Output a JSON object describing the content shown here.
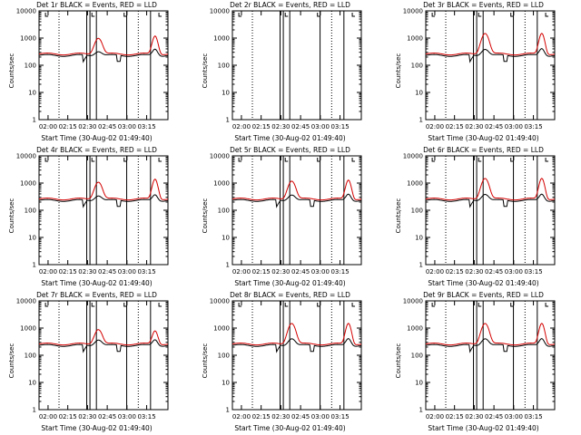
{
  "chart_data": [
    {
      "type": "line",
      "title": "Det 1r BLACK = Events, RED = LLD",
      "xlabel": "Start Time (30-Aug-02 01:49:40)",
      "ylabel": "Counts/sec",
      "x_ticks": [
        "02:00",
        "02:15",
        "02:30",
        "02:45",
        "03:00",
        "03:15"
      ],
      "y_ticks": [
        "1",
        "10",
        "100",
        "1000",
        "10000"
      ],
      "ylim": [
        1,
        10000
      ],
      "y_scale": "log",
      "series": [
        {
          "color": "#000000",
          "peaks": [
            330,
            400
          ]
        },
        {
          "color": "#d40000",
          "peaks": [
            1000,
            1200
          ]
        }
      ],
      "has_data": true
    },
    {
      "type": "line",
      "title": "Det 2r BLACK = Events, RED = LLD",
      "xlabel": "Start Time (30-Aug-02 01:49:40)",
      "ylabel": "Counts/sec",
      "x_ticks": [
        "02:00",
        "02:15",
        "02:30",
        "02:45",
        "03:00",
        "03:15"
      ],
      "y_ticks": [
        "1",
        "10",
        "100",
        "1000",
        "10000"
      ],
      "ylim": [
        1,
        10000
      ],
      "y_scale": "log",
      "series": [],
      "has_data": false
    },
    {
      "type": "line",
      "title": "Det 3r BLACK = Events, RED = LLD",
      "xlabel": "Start Time (30-Aug-02 01:49:40)",
      "ylabel": "Counts/sec",
      "x_ticks": [
        "02:00",
        "02:15",
        "02:30",
        "02:45",
        "03:00",
        "03:15"
      ],
      "y_ticks": [
        "1",
        "10",
        "100",
        "1000",
        "10000"
      ],
      "ylim": [
        1,
        10000
      ],
      "y_scale": "log",
      "series": [
        {
          "color": "#000000",
          "peaks": [
            400,
            420
          ]
        },
        {
          "color": "#d40000",
          "peaks": [
            1500,
            1500
          ]
        }
      ],
      "has_data": true
    },
    {
      "type": "line",
      "title": "Det 4r BLACK = Events, RED = LLD",
      "xlabel": "Start Time (30-Aug-02 01:49:40)",
      "ylabel": "Counts/sec",
      "x_ticks": [
        "02:00",
        "02:15",
        "02:30",
        "02:45",
        "03:00",
        "03:15"
      ],
      "y_ticks": [
        "1",
        "10",
        "100",
        "1000",
        "10000"
      ],
      "ylim": [
        1,
        10000
      ],
      "y_scale": "log",
      "series": [
        {
          "color": "#000000",
          "peaks": [
            350,
            380
          ]
        },
        {
          "color": "#d40000",
          "peaks": [
            1100,
            1400
          ]
        }
      ],
      "has_data": true
    },
    {
      "type": "line",
      "title": "Det 5r BLACK = Events, RED = LLD",
      "xlabel": "Start Time (30-Aug-02 01:49:40)",
      "ylabel": "Counts/sec",
      "x_ticks": [
        "02:00",
        "02:15",
        "02:30",
        "02:45",
        "03:00",
        "03:15"
      ],
      "y_ticks": [
        "1",
        "10",
        "100",
        "1000",
        "10000"
      ],
      "ylim": [
        1,
        10000
      ],
      "y_scale": "log",
      "series": [
        {
          "color": "#000000",
          "peaks": [
            380,
            400
          ]
        },
        {
          "color": "#d40000",
          "peaks": [
            1200,
            1300
          ]
        }
      ],
      "has_data": true
    },
    {
      "type": "line",
      "title": "Det 6r BLACK = Events, RED = LLD",
      "xlabel": "Start Time (30-Aug-02 01:49:40)",
      "ylabel": "Counts/sec",
      "x_ticks": [
        "02:00",
        "02:15",
        "02:30",
        "02:45",
        "03:00",
        "03:15"
      ],
      "y_ticks": [
        "1",
        "10",
        "100",
        "1000",
        "10000"
      ],
      "ylim": [
        1,
        10000
      ],
      "y_scale": "log",
      "series": [
        {
          "color": "#000000",
          "peaks": [
            400,
            400
          ]
        },
        {
          "color": "#d40000",
          "peaks": [
            1500,
            1500
          ]
        }
      ],
      "has_data": true
    },
    {
      "type": "line",
      "title": "Det 7r BLACK = Events, RED = LLD",
      "xlabel": "Start Time (30-Aug-02 01:49:40)",
      "ylabel": "Counts/sec",
      "x_ticks": [
        "02:00",
        "02:15",
        "02:30",
        "02:45",
        "03:00",
        "03:15"
      ],
      "y_ticks": [
        "1",
        "10",
        "100",
        "1000",
        "10000"
      ],
      "ylim": [
        1,
        10000
      ],
      "y_scale": "log",
      "series": [
        {
          "color": "#000000",
          "peaks": [
            380,
            380
          ]
        },
        {
          "color": "#d40000",
          "peaks": [
            900,
            800
          ]
        }
      ],
      "has_data": true
    },
    {
      "type": "line",
      "title": "Det 8r BLACK = Events, RED = LLD",
      "xlabel": "Start Time (30-Aug-02 01:49:40)",
      "ylabel": "Counts/sec",
      "x_ticks": [
        "02:00",
        "02:15",
        "02:30",
        "02:45",
        "03:00",
        "03:15"
      ],
      "y_ticks": [
        "1",
        "10",
        "100",
        "1000",
        "10000"
      ],
      "ylim": [
        1,
        10000
      ],
      "y_scale": "log",
      "series": [
        {
          "color": "#000000",
          "peaks": [
            420,
            420
          ]
        },
        {
          "color": "#d40000",
          "peaks": [
            1500,
            1500
          ]
        }
      ],
      "has_data": true
    },
    {
      "type": "line",
      "title": "Det 9r BLACK = Events, RED = LLD",
      "xlabel": "Start Time (30-Aug-02 01:49:40)",
      "ylabel": "Counts/sec",
      "x_ticks": [
        "02:00",
        "02:15",
        "02:30",
        "02:45",
        "03:00",
        "03:15"
      ],
      "y_ticks": [
        "1",
        "10",
        "100",
        "1000",
        "10000"
      ],
      "ylim": [
        1,
        10000
      ],
      "y_scale": "log",
      "series": [
        {
          "color": "#000000",
          "peaks": [
            420,
            420
          ]
        },
        {
          "color": "#d40000",
          "peaks": [
            1500,
            1500
          ]
        }
      ],
      "has_data": true
    }
  ]
}
